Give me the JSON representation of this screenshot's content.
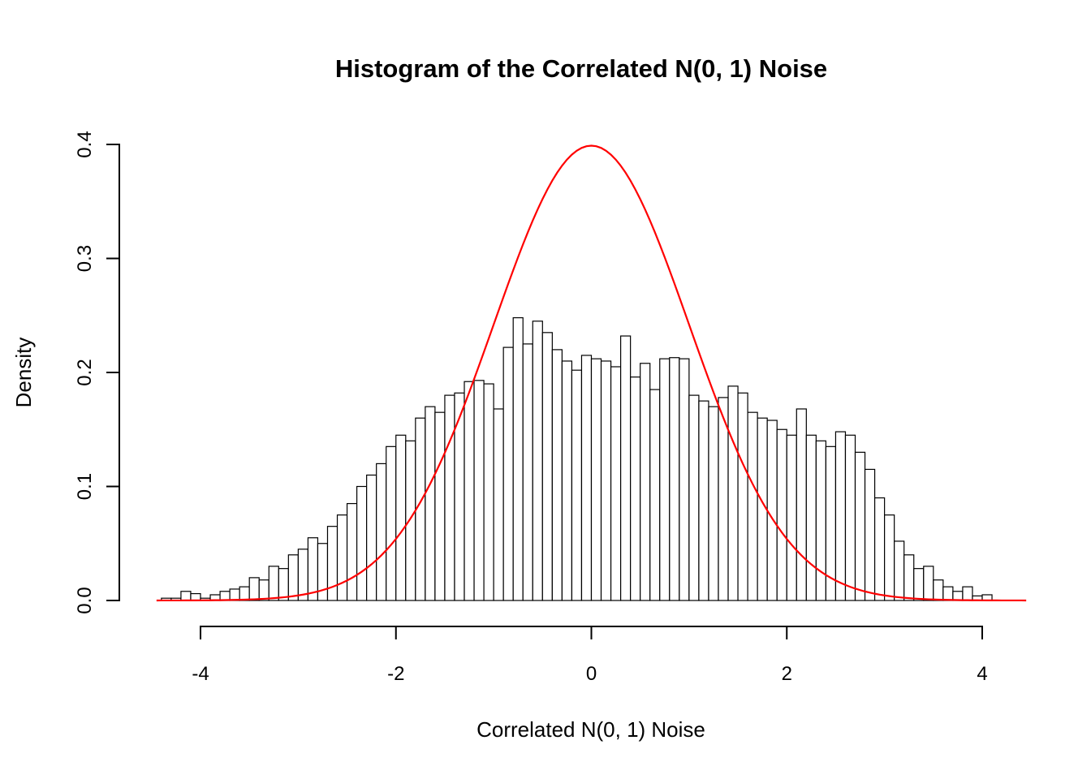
{
  "background": "#ffffff",
  "chart_data": {
    "type": "bar",
    "subtype": "histogram-with-density-curve",
    "title": "Histogram of the Correlated N(0, 1) Noise",
    "xlabel": "Correlated N(0, 1) Noise",
    "ylabel": "Density",
    "x_ticks": [
      -4,
      -2,
      0,
      2,
      4
    ],
    "y_ticks": [
      0.0,
      0.1,
      0.2,
      0.3,
      0.4
    ],
    "xlim": [
      -4.45,
      4.45
    ],
    "ylim": [
      0,
      0.4
    ],
    "grid": false,
    "legend": "none",
    "bar_fill": "#ffffff",
    "bar_stroke": "#000000",
    "bin_start": -4.4,
    "bin_width": 0.1,
    "densities": [
      0.002,
      0.002,
      0.008,
      0.006,
      0.002,
      0.005,
      0.008,
      0.01,
      0.012,
      0.02,
      0.018,
      0.03,
      0.028,
      0.04,
      0.045,
      0.055,
      0.05,
      0.065,
      0.075,
      0.085,
      0.1,
      0.11,
      0.12,
      0.135,
      0.145,
      0.14,
      0.16,
      0.17,
      0.165,
      0.18,
      0.182,
      0.192,
      0.193,
      0.19,
      0.168,
      0.222,
      0.248,
      0.225,
      0.245,
      0.235,
      0.22,
      0.21,
      0.202,
      0.215,
      0.212,
      0.21,
      0.205,
      0.232,
      0.196,
      0.208,
      0.185,
      0.212,
      0.213,
      0.212,
      0.18,
      0.175,
      0.17,
      0.178,
      0.188,
      0.182,
      0.165,
      0.16,
      0.158,
      0.15,
      0.145,
      0.168,
      0.145,
      0.14,
      0.135,
      0.148,
      0.145,
      0.13,
      0.115,
      0.09,
      0.075,
      0.052,
      0.04,
      0.028,
      0.03,
      0.018,
      0.012,
      0.008,
      0.012,
      0.004,
      0.005
    ],
    "curve": {
      "name": "standard-normal-density",
      "mean": 0,
      "sd": 1,
      "peak": 0.399,
      "color": "#FF0000"
    }
  }
}
